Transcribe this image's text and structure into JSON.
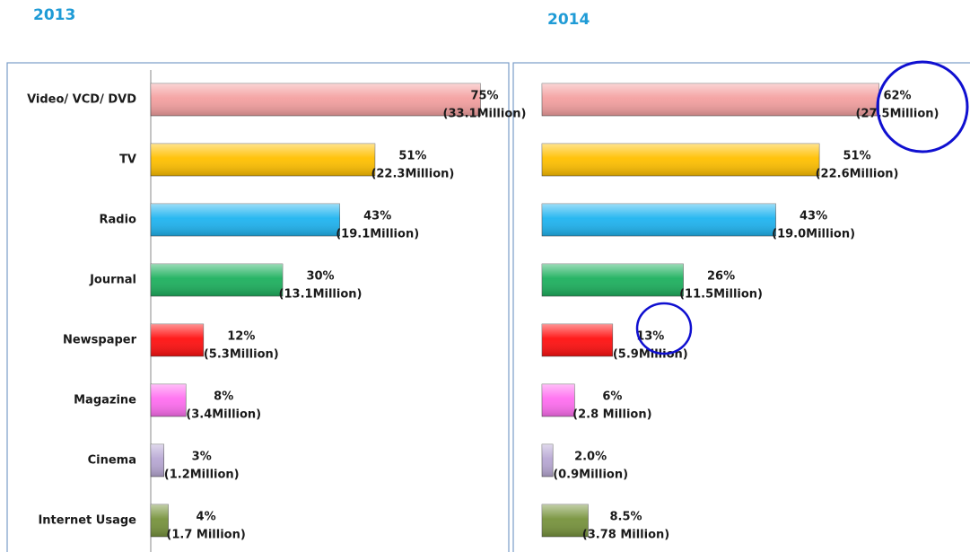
{
  "chart_data": [
    {
      "type": "bar",
      "title": "2013",
      "categories": [
        "Video/ VCD/ DVD",
        "TV",
        "Radio",
        "Journal",
        "Newspaper",
        "Magazine",
        "Cinema",
        "Internet Usage"
      ],
      "values": [
        75,
        51,
        43,
        30,
        12,
        8,
        3,
        4
      ],
      "value_labels": [
        "75%",
        "51%",
        "43%",
        "30%",
        "12%",
        "8%",
        "3%",
        "4%"
      ],
      "audience_labels": [
        "(33.1Million)",
        "(22.3Million)",
        "(19.1Million)",
        "(13.1Million)",
        "(5.3Million)",
        "(3.4Million)",
        "(1.2Million)",
        "(1.7 Million)"
      ],
      "colors": [
        "#f4a0a0",
        "#ffc000",
        "#1fb4f0",
        "#1db05e",
        "#ff1010",
        "#ff6ef0",
        "#b8a8d4",
        "#77933c"
      ]
    },
    {
      "type": "bar",
      "title": "2014",
      "values": [
        62,
        51,
        43,
        26,
        13,
        6,
        2.0,
        8.5
      ],
      "value_labels": [
        "62%",
        "51%",
        "43%",
        "26%",
        "13%",
        "6%",
        "2.0%",
        "8.5%"
      ],
      "audience_labels": [
        "(27.5Million)",
        "(22.6Million)",
        "(19.0Million)",
        "(11.5Million)",
        "(5.9Million)",
        "(2.8 Million)",
        "(0.9Million)",
        "(3.78 Million)"
      ],
      "colors": [
        "#f4a0a0",
        "#ffc000",
        "#1fb4f0",
        "#1db05e",
        "#ff1010",
        "#ff6ef0",
        "#b8a8d4",
        "#77933c"
      ]
    }
  ]
}
